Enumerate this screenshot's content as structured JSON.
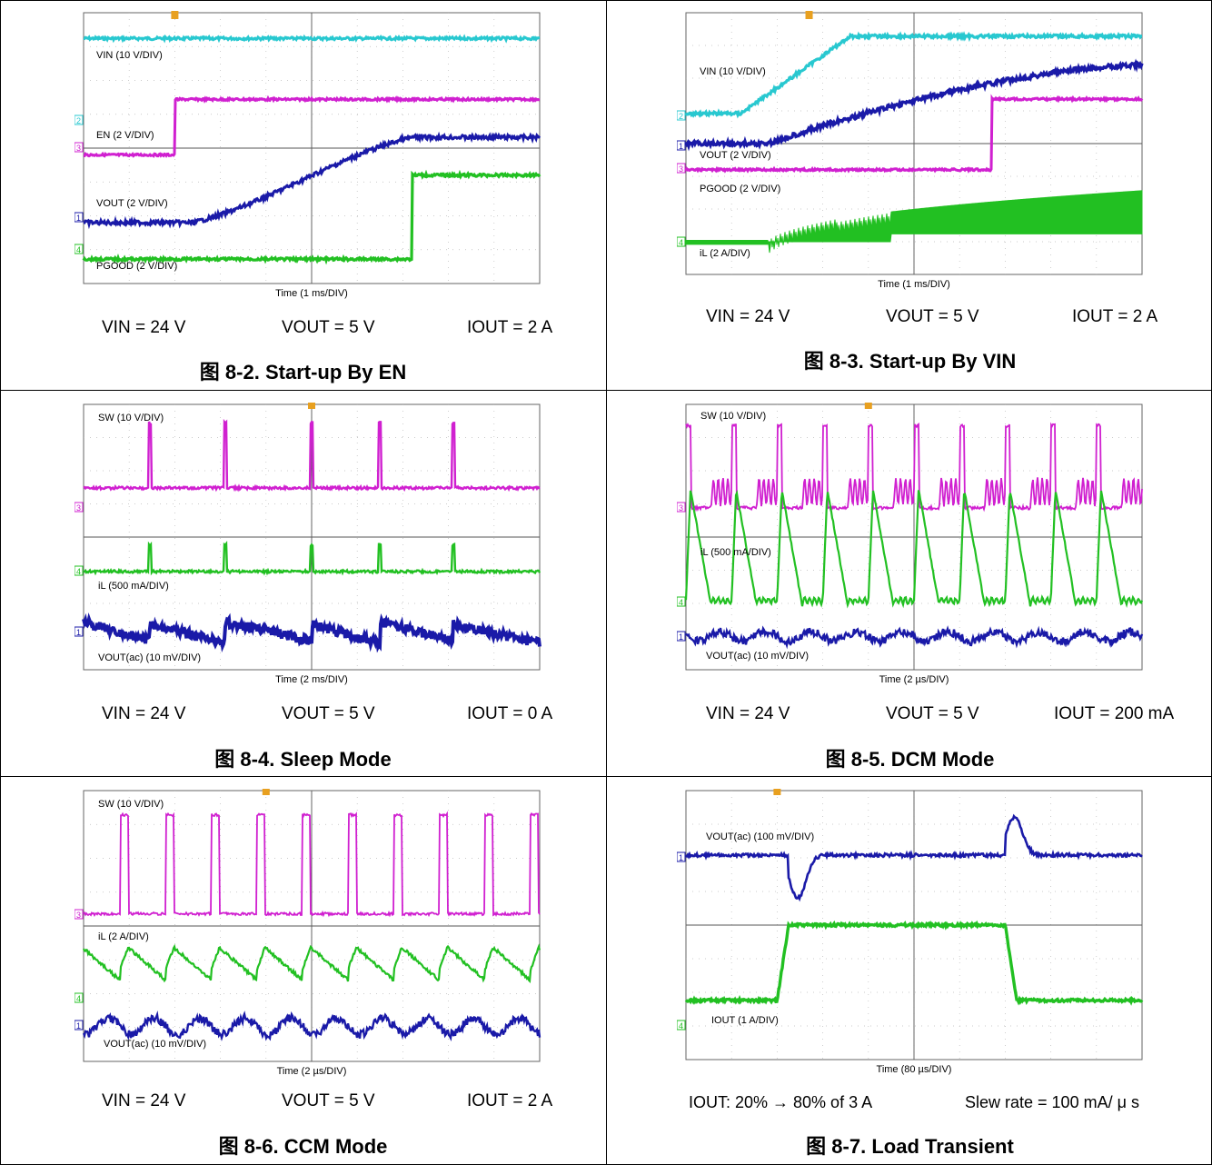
{
  "panels": [
    {
      "id": "8-2",
      "caption_prefix": "图",
      "caption_num": "8-2.",
      "caption_text": "Start-up By EN",
      "time_label": "Time (1 ms/DIV)",
      "trace_labels": [
        "VIN (10 V/DIV)",
        "EN (2 V/DIV)",
        "VOUT (2 V/DIV)",
        "PGOOD (2 V/DIV)"
      ],
      "channel_markers": [
        "2",
        "3",
        "1",
        "4"
      ],
      "conditions": [
        "VIN = 24 V",
        "VOUT = 5 V",
        "IOUT = 2 A"
      ]
    },
    {
      "id": "8-3",
      "caption_prefix": "图",
      "caption_num": "8-3.",
      "caption_text": "Start-up By VIN",
      "time_label": "Time (1 ms/DIV)",
      "trace_labels": [
        "VIN (10 V/DIV)",
        "VOUT (2 V/DIV)",
        "PGOOD (2 V/DIV)",
        "iL (2 A/DIV)"
      ],
      "channel_markers": [
        "2",
        "1",
        "3",
        "4"
      ],
      "conditions": [
        "VIN = 24 V",
        "VOUT = 5 V",
        "IOUT = 2 A"
      ]
    },
    {
      "id": "8-4",
      "caption_prefix": "图",
      "caption_num": "8-4.",
      "caption_text": "Sleep Mode",
      "time_label": "Time (2 ms/DIV)",
      "trace_labels": [
        "SW (10 V/DIV)",
        "iL (500 mA/DIV)",
        "VOUT(ac) (10 mV/DIV)"
      ],
      "channel_markers": [
        "3",
        "4",
        "1"
      ],
      "conditions": [
        "VIN = 24 V",
        "VOUT = 5 V",
        "IOUT = 0 A"
      ]
    },
    {
      "id": "8-5",
      "caption_prefix": "图",
      "caption_num": "8-5.",
      "caption_text": "DCM Mode",
      "time_label": "Time (2 µs/DIV)",
      "trace_labels": [
        "SW (10 V/DIV)",
        "iL (500 mA/DIV)",
        "VOUT(ac) (10 mV/DIV)"
      ],
      "channel_markers": [
        "3",
        "4",
        "1"
      ],
      "conditions": [
        "VIN = 24 V",
        "VOUT = 5 V",
        "IOUT = 200 mA"
      ]
    },
    {
      "id": "8-6",
      "caption_prefix": "图",
      "caption_num": "8-6.",
      "caption_text": "CCM Mode",
      "time_label": "Time (2 µs/DIV)",
      "trace_labels": [
        "SW (10 V/DIV)",
        "iL (2 A/DIV)",
        "VOUT(ac) (10 mV/DIV)"
      ],
      "channel_markers": [
        "3",
        "4",
        "1"
      ],
      "conditions": [
        "VIN = 24 V",
        "VOUT = 5 V",
        "IOUT = 2 A"
      ]
    },
    {
      "id": "8-7",
      "caption_prefix": "图",
      "caption_num": "8-7.",
      "caption_text": "Load Transient",
      "time_label": "Time (80 µs/DIV)",
      "trace_labels": [
        "VOUT(ac) (100 mV/DIV)",
        "IOUT (1 A/DIV)"
      ],
      "channel_markers": [
        "1",
        "4"
      ],
      "conditions": [
        "IOUT: 20% → 80% of 3 A",
        "Slew rate = 100 mA/ μ s"
      ]
    }
  ],
  "colors": {
    "ch1": "#1a1aa8",
    "ch2": "#28c8d0",
    "ch3": "#d020d0",
    "ch4": "#22c022",
    "trigger": "#e8a020"
  }
}
